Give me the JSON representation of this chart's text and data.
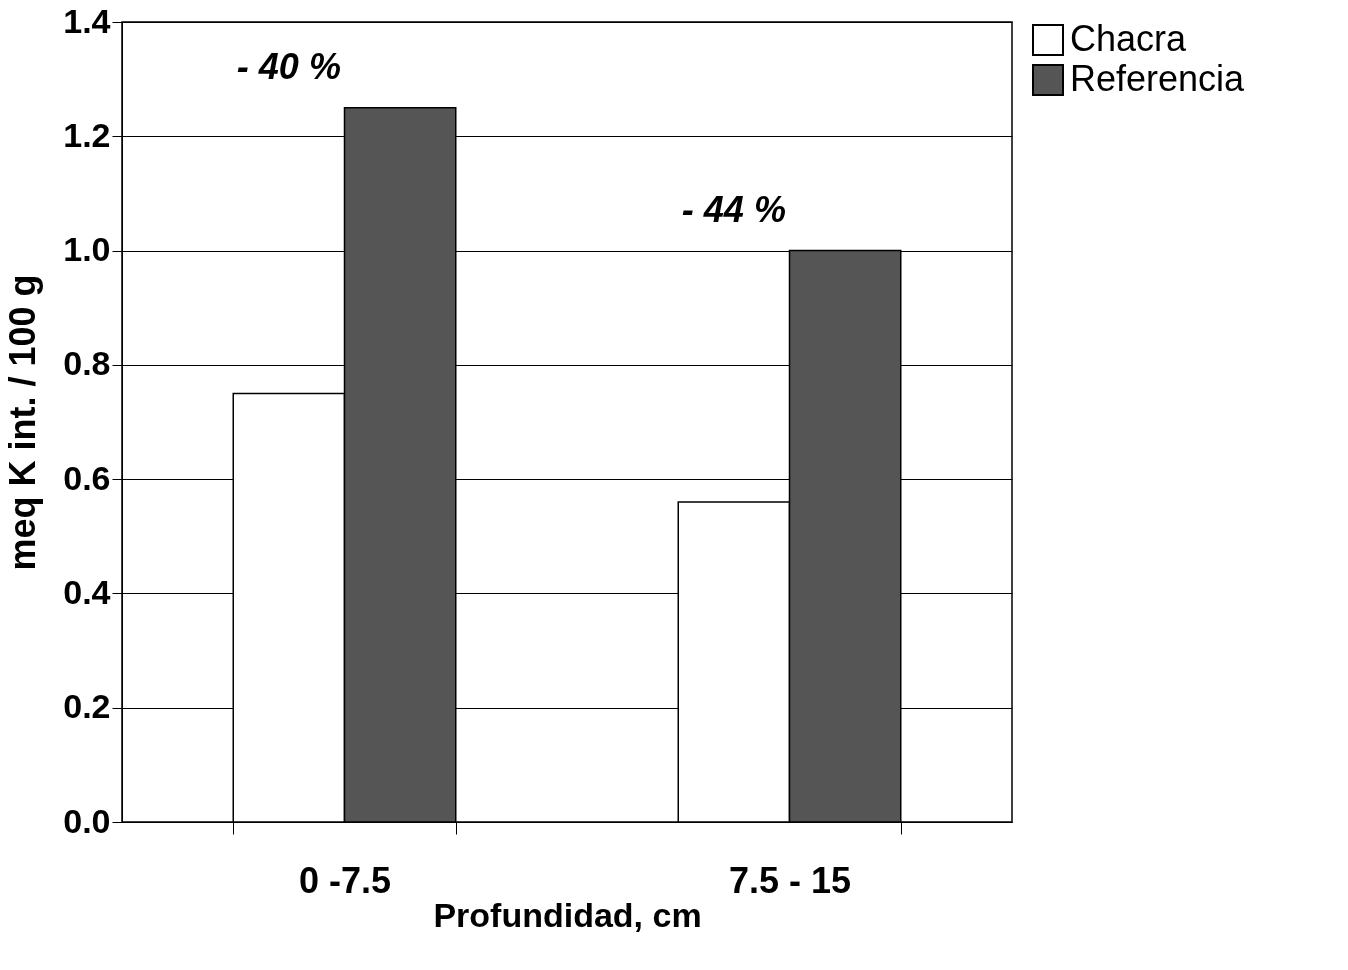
{
  "chart_data": {
    "type": "bar",
    "xlabel": "Profundidad, cm",
    "ylabel": "meq  K int. / 100 g",
    "categories": [
      "0 -7.5",
      "7.5 - 15"
    ],
    "series": [
      {
        "name": "Chacra",
        "color": "#ffffff",
        "values": [
          0.75,
          0.56
        ]
      },
      {
        "name": "Referencia",
        "color": "#555555",
        "values": [
          1.25,
          1.0
        ]
      }
    ],
    "ylim": [
      0,
      1.4
    ],
    "yticks": [
      {
        "value": 0,
        "label": "0.0"
      },
      0.2,
      0.4,
      0.6,
      0.8,
      {
        "value": 1,
        "label": "1.0"
      },
      1.2,
      1.4
    ],
    "grid": "y",
    "legend": "right",
    "annotations": [
      "- 40 %",
      "- 44 %"
    ]
  }
}
